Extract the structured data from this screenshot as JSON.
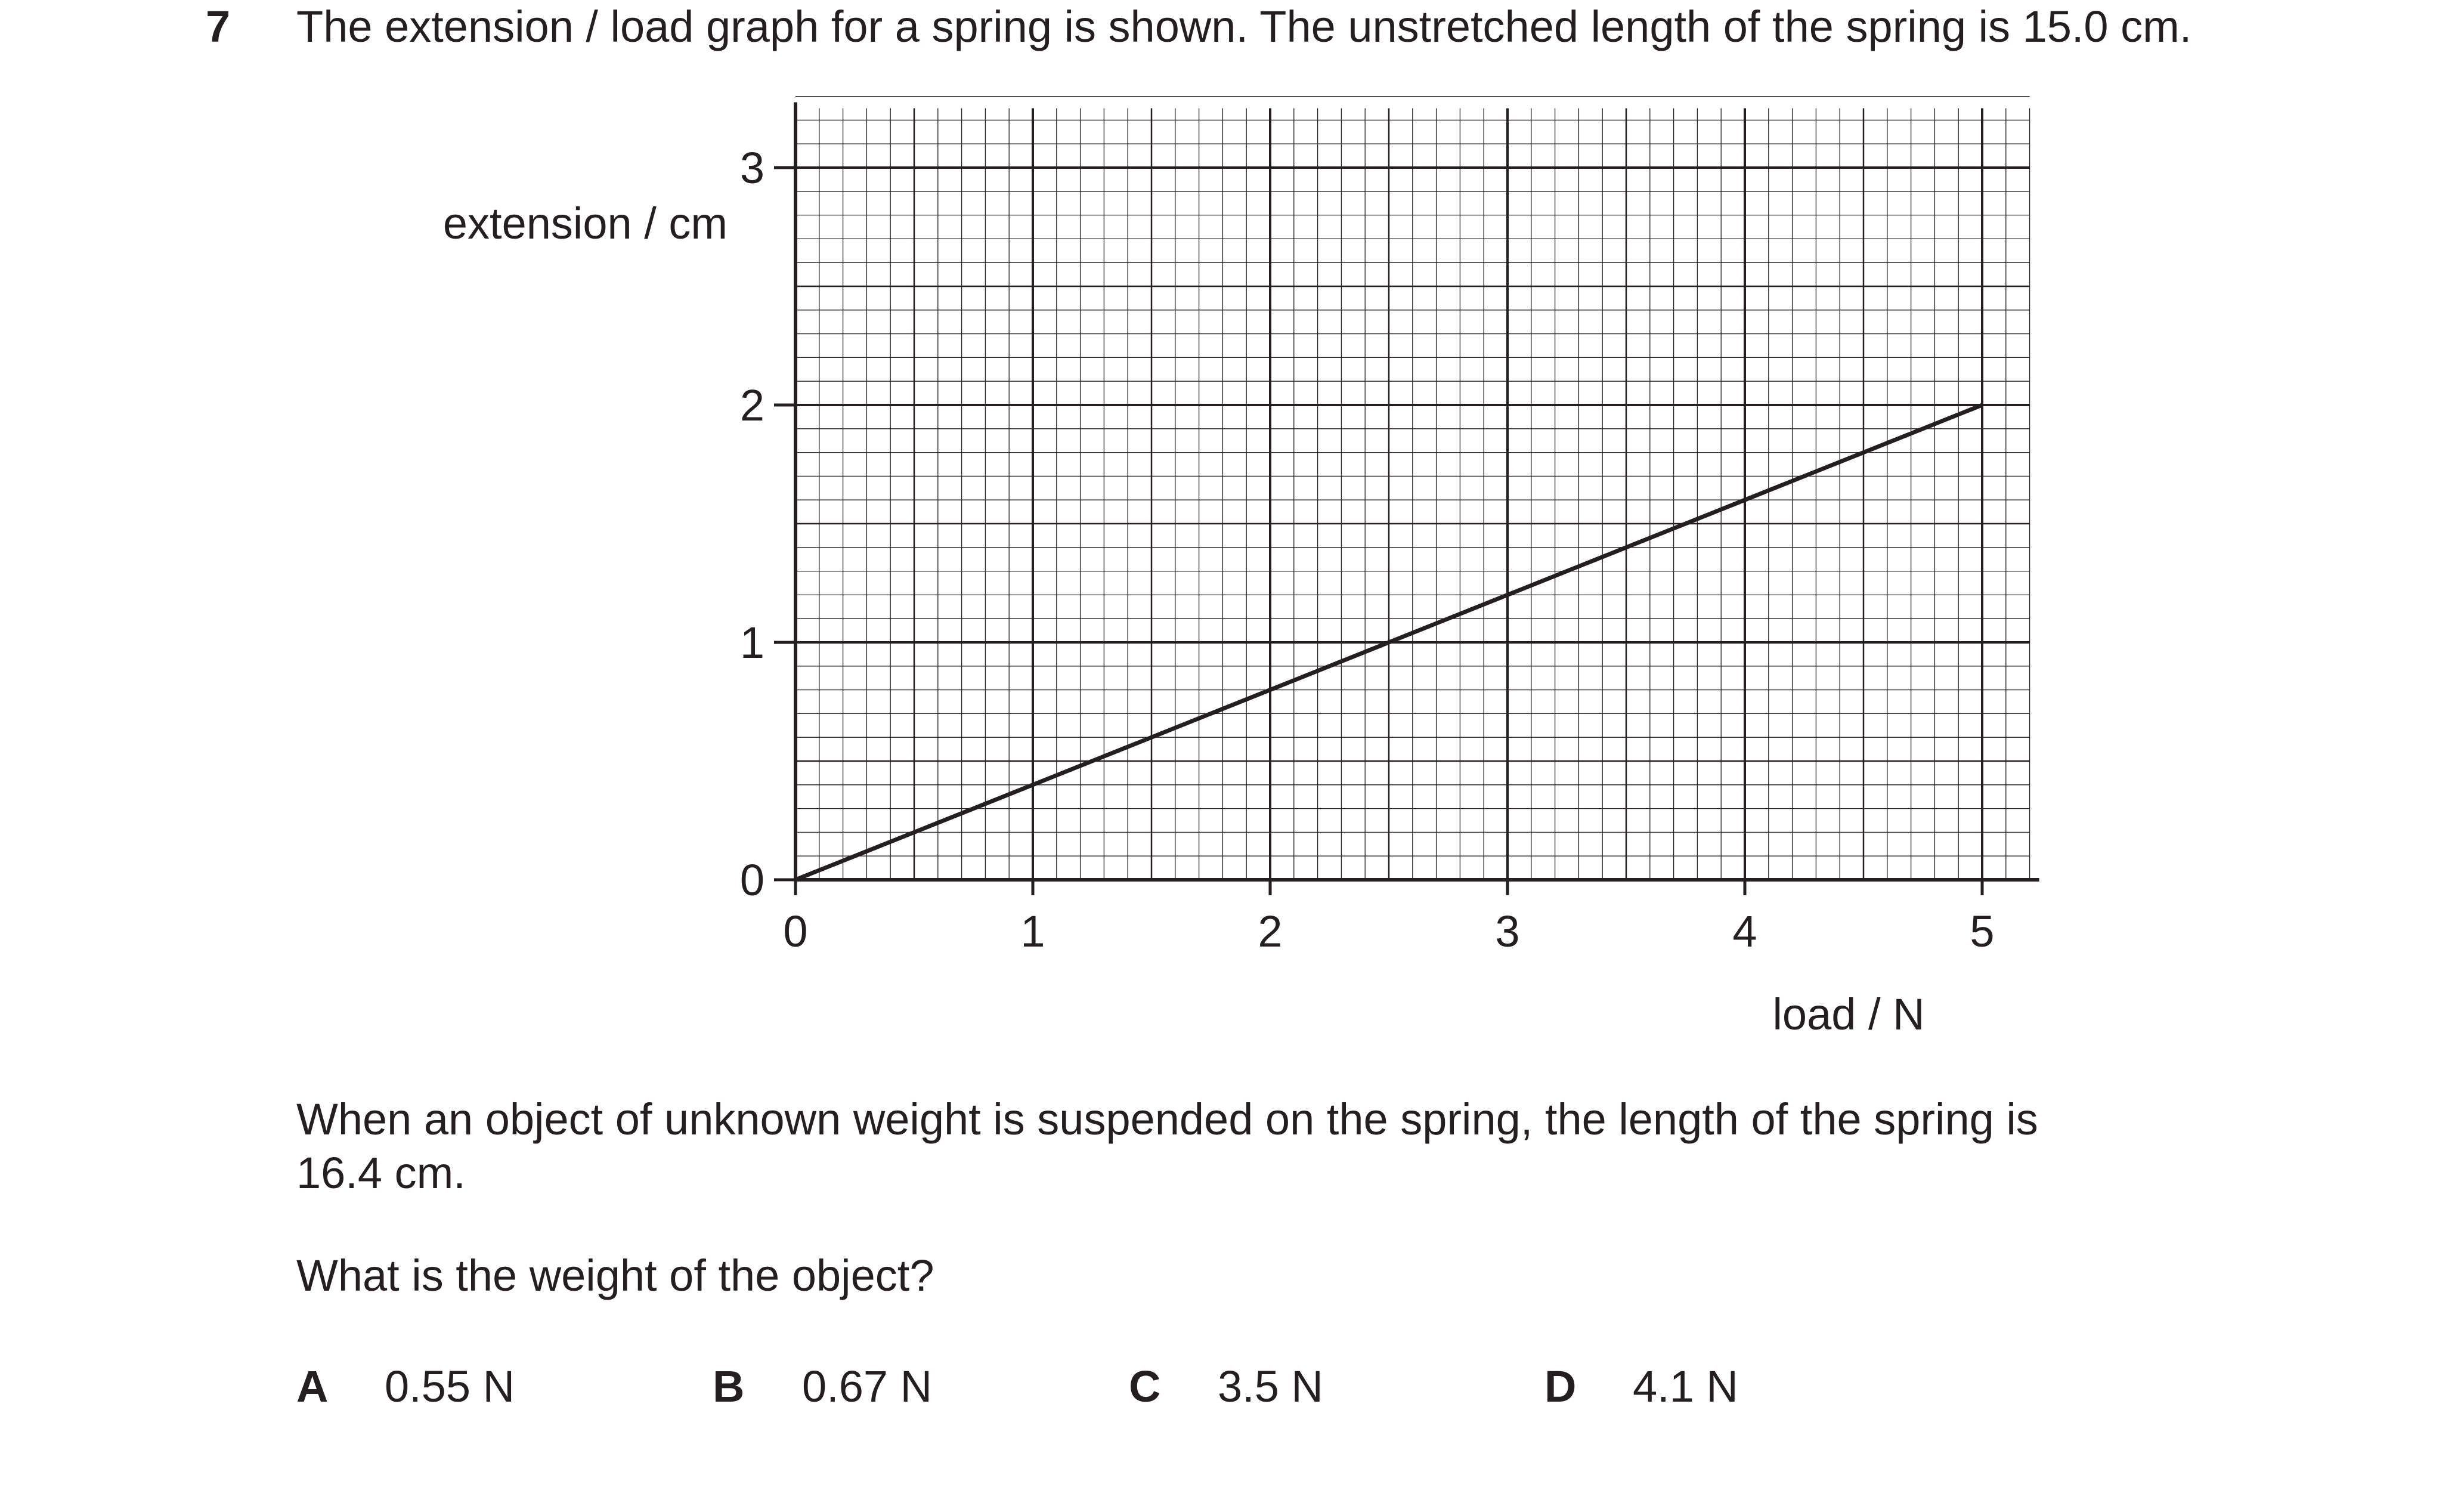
{
  "question": {
    "number": "7",
    "stem": "The extension / load graph for a spring is shown. The unstretched length of the spring is 15.0 cm.",
    "body_line1": "When an object of unknown weight is suspended on the spring, the length of the spring is",
    "body_line2": "16.4 cm.",
    "prompt": "What is the weight of the object?",
    "options": [
      {
        "letter": "A",
        "value": "0.55 N"
      },
      {
        "letter": "B",
        "value": "0.67 N"
      },
      {
        "letter": "C",
        "value": "3.5 N"
      },
      {
        "letter": "D",
        "value": "4.1 N"
      }
    ]
  },
  "chart_data": {
    "type": "line",
    "xlabel": "load / N",
    "ylabel": "extension / cm",
    "xlim": [
      0,
      5.2
    ],
    "ylim": [
      0,
      3.25
    ],
    "x_ticks": [
      0,
      1,
      2,
      3,
      4,
      5
    ],
    "y_ticks": [
      0,
      1,
      2,
      3
    ],
    "grid": true,
    "series": [
      {
        "x": [
          0,
          5
        ],
        "y": [
          0,
          2
        ]
      }
    ]
  }
}
